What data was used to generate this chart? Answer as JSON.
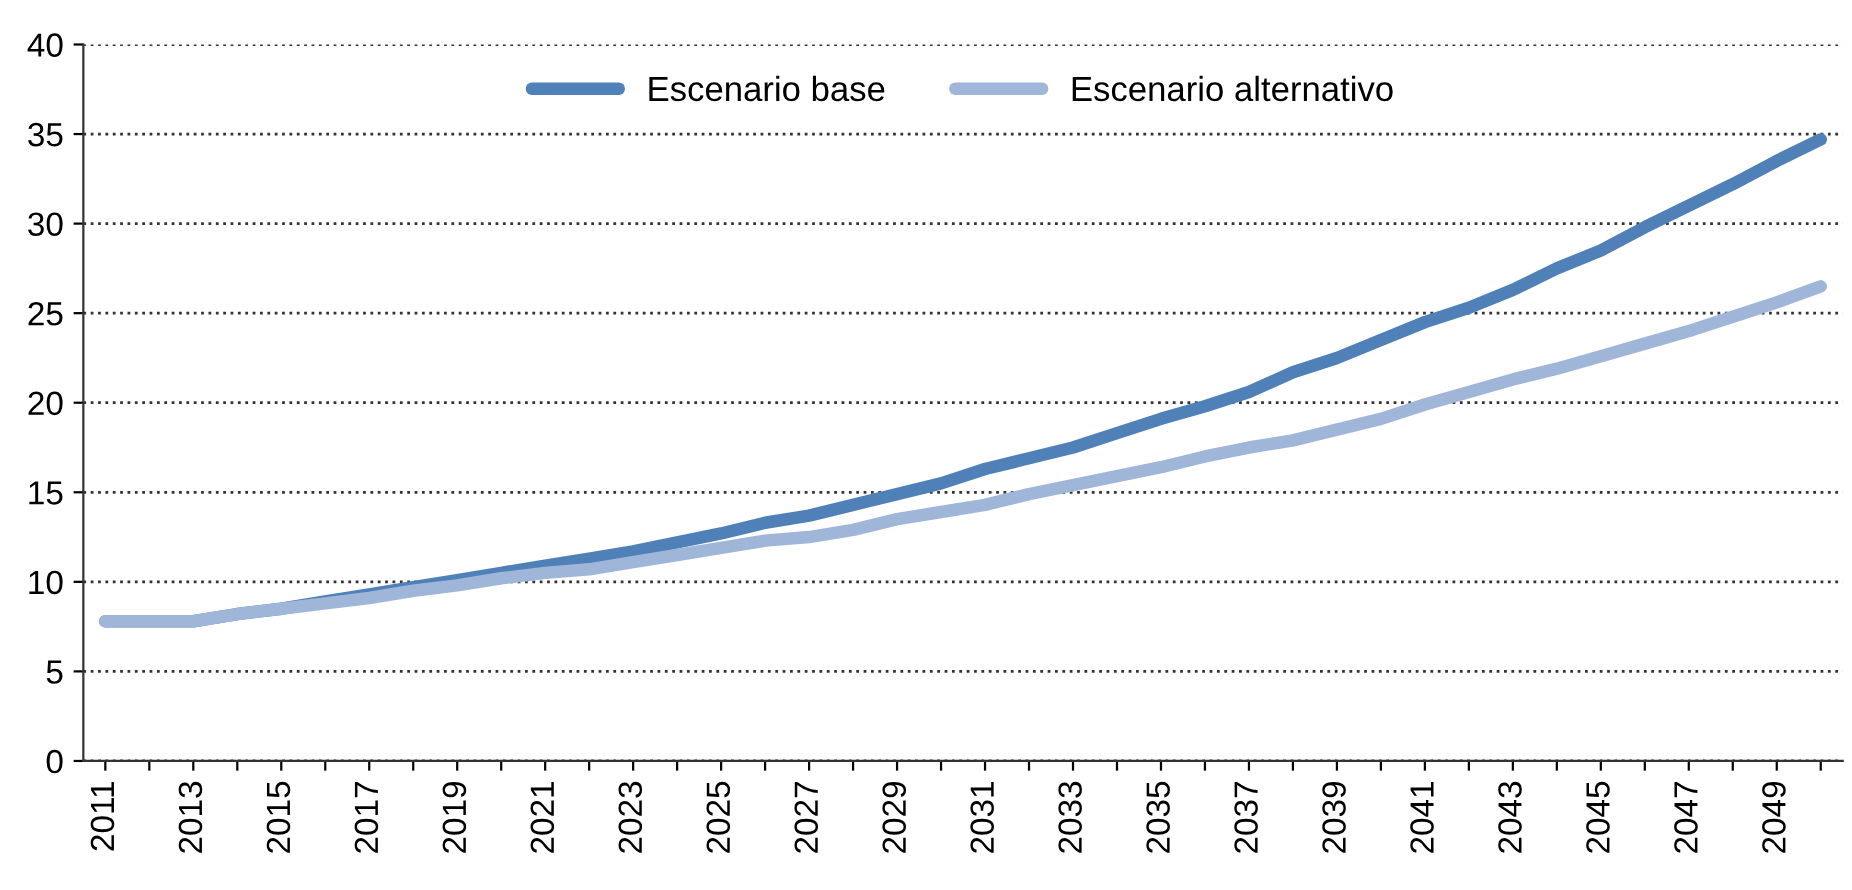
{
  "chart_data": {
    "type": "line",
    "categories": [
      "2011",
      null,
      "2013",
      null,
      "2015",
      null,
      "2017",
      null,
      "2019",
      null,
      "2021",
      null,
      "2023",
      null,
      "2025",
      null,
      "2027",
      null,
      "2029",
      null,
      "2031",
      null,
      "2033",
      null,
      "2035",
      null,
      "2037",
      null,
      "2039",
      null,
      "2041",
      null,
      "2043",
      null,
      "2045",
      null,
      "2047",
      null,
      "2049",
      null
    ],
    "series": [
      {
        "name": "Escenario base",
        "color": "#4f81b8",
        "values": [
          7.8,
          7.8,
          7.8,
          8.2,
          8.5,
          8.9,
          9.3,
          9.7,
          10.1,
          10.5,
          10.9,
          11.3,
          11.7,
          12.2,
          12.7,
          13.3,
          13.7,
          14.3,
          14.9,
          15.5,
          16.3,
          16.9,
          17.5,
          18.3,
          19.1,
          19.8,
          20.6,
          21.7,
          22.5,
          23.5,
          24.5,
          25.3,
          26.3,
          27.5,
          28.5,
          29.8,
          31.0,
          32.2,
          33.5,
          34.7
        ]
      },
      {
        "name": "Escenario alternativo",
        "color": "#a0b6d9",
        "values": [
          7.8,
          7.8,
          7.8,
          8.2,
          8.5,
          8.8,
          9.1,
          9.5,
          9.8,
          10.2,
          10.5,
          10.7,
          11.1,
          11.5,
          11.9,
          12.3,
          12.5,
          12.9,
          13.5,
          13.9,
          14.3,
          14.9,
          15.4,
          15.9,
          16.4,
          17.0,
          17.5,
          17.9,
          18.5,
          19.1,
          19.9,
          20.6,
          21.3,
          21.9,
          22.6,
          23.3,
          24.0,
          24.8,
          25.6,
          26.5
        ]
      }
    ],
    "ylim": [
      0,
      40
    ],
    "yticks": [
      0,
      5,
      10,
      15,
      20,
      25,
      30,
      35,
      40
    ],
    "grid": "y",
    "legend": "top",
    "marker": "none",
    "line_style": "solid"
  }
}
